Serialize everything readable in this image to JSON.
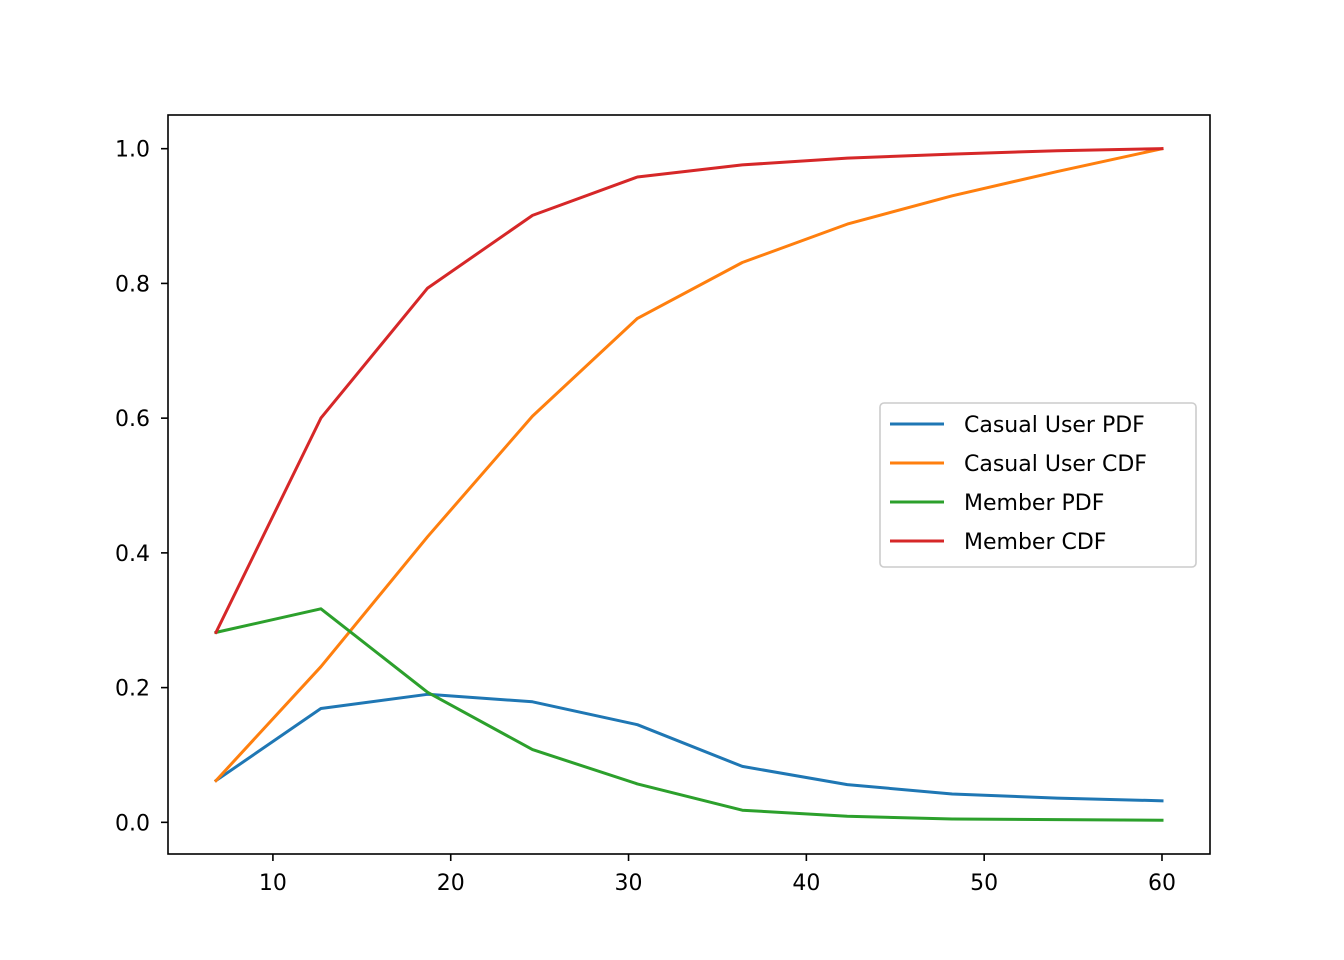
{
  "chart_data": {
    "type": "line",
    "title": "",
    "xlabel": "",
    "ylabel": "",
    "x": [
      6.8,
      12.7,
      18.7,
      24.6,
      30.5,
      36.4,
      42.3,
      48.2,
      54.1,
      60.0
    ],
    "xlim": [
      4.1,
      62.7
    ],
    "ylim": [
      -0.047,
      1.05
    ],
    "xticks": [
      10,
      20,
      30,
      40,
      50,
      60
    ],
    "xtick_labels": [
      "10",
      "20",
      "30",
      "40",
      "50",
      "60"
    ],
    "yticks": [
      0.0,
      0.2,
      0.4,
      0.6,
      0.8,
      1.0
    ],
    "ytick_labels": [
      "0.0",
      "0.2",
      "0.4",
      "0.6",
      "0.8",
      "1.0"
    ],
    "grid": false,
    "legend_position": "center-right",
    "series": [
      {
        "name": "Casual User PDF",
        "color": "#1f77b4",
        "values": [
          0.062,
          0.169,
          0.19,
          0.179,
          0.145,
          0.083,
          0.056,
          0.042,
          0.036,
          0.032
        ]
      },
      {
        "name": "Casual User CDF",
        "color": "#ff7f0e",
        "values": [
          0.062,
          0.231,
          0.424,
          0.603,
          0.748,
          0.831,
          0.888,
          0.93,
          0.966,
          1.0
        ]
      },
      {
        "name": "Member PDF",
        "color": "#2ca02c",
        "values": [
          0.282,
          0.317,
          0.193,
          0.108,
          0.057,
          0.018,
          0.009,
          0.005,
          0.004,
          0.003
        ]
      },
      {
        "name": "Member CDF",
        "color": "#d62728",
        "values": [
          0.282,
          0.6,
          0.793,
          0.901,
          0.958,
          0.976,
          0.986,
          0.992,
          0.997,
          1.0
        ]
      }
    ]
  }
}
